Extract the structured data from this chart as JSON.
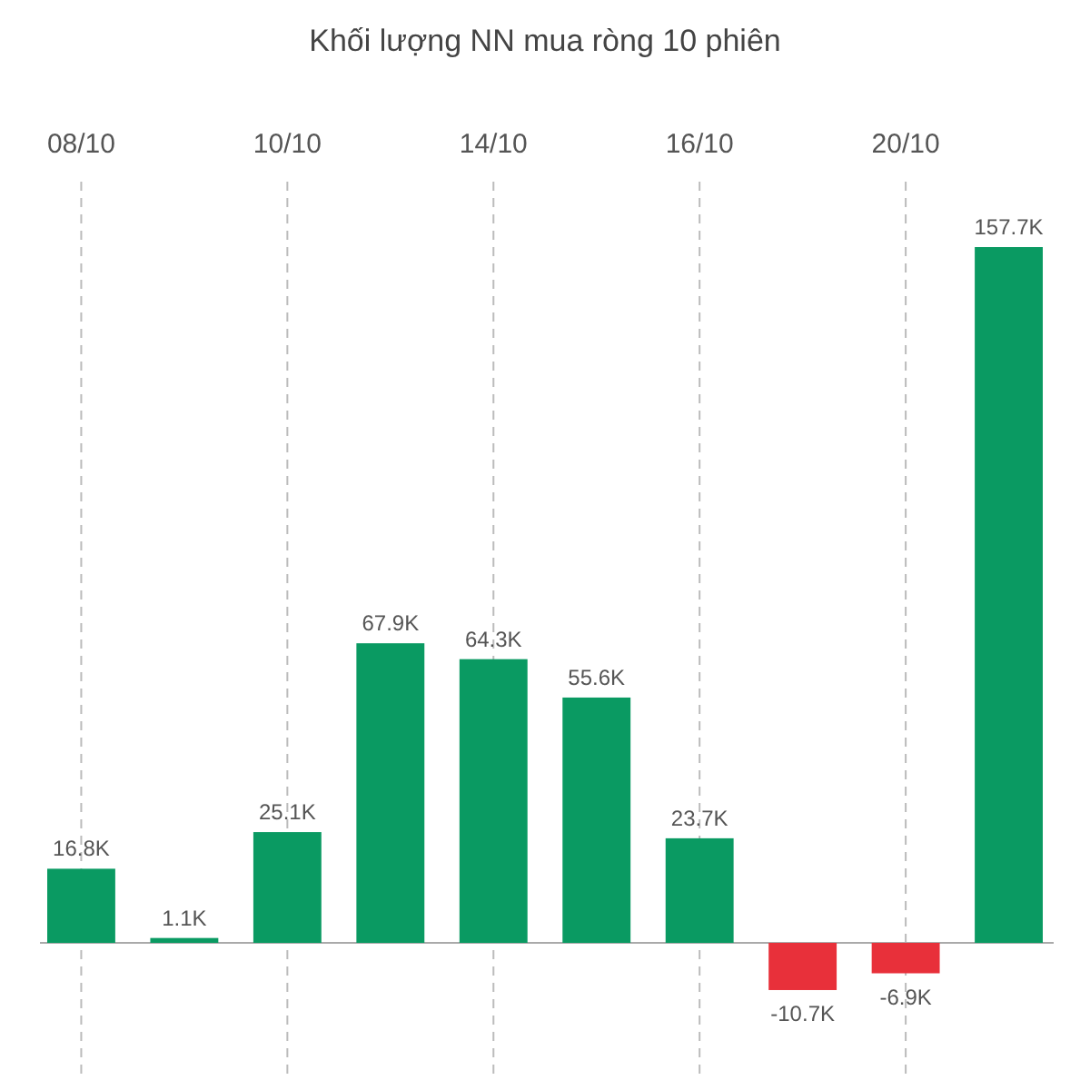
{
  "chart_data": {
    "type": "bar",
    "title": "Khối lượng NN mua ròng 10 phiên",
    "categories": [
      "08/10",
      null,
      "10/10",
      null,
      "14/10",
      null,
      "16/10",
      null,
      "20/10",
      null
    ],
    "values": [
      16.8,
      1.1,
      25.1,
      67.9,
      64.3,
      55.6,
      23.7,
      -10.7,
      -6.9,
      157.7
    ],
    "value_labels": [
      "16.8K",
      "1.1K",
      "25.1K",
      "67.9K",
      "64.3K",
      "55.6K",
      "23.7K",
      "-10.7K",
      "-6.9K",
      "157.7K"
    ],
    "colors": [
      "#0a9a62",
      "#0a9a62",
      "#0a9a62",
      "#0a9a62",
      "#0a9a62",
      "#0a9a62",
      "#0a9a62",
      "#e8303a",
      "#e8303a",
      "#0a9a62"
    ],
    "grid": "x"
  }
}
